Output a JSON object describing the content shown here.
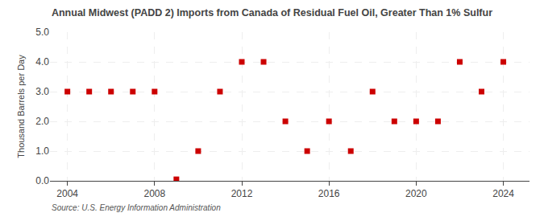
{
  "chart_data": {
    "type": "scatter",
    "title": "Annual Midwest (PADD 2) Imports from Canada of Residual Fuel Oil, Greater Than 1% Sulfur",
    "ylabel": "Thousand Barrels per Day",
    "annotations": [
      "Source: U.S. Energy Information Administration"
    ],
    "x": [
      2004,
      2005,
      2006,
      2007,
      2008,
      2009,
      2010,
      2011,
      2012,
      2013,
      2014,
      2015,
      2016,
      2017,
      2018,
      2019,
      2020,
      2021,
      2022,
      2023,
      2024
    ],
    "values": [
      3.0,
      3.0,
      3.0,
      3.0,
      3.0,
      0.05,
      1.0,
      3.0,
      4.0,
      4.0,
      2.0,
      1.0,
      2.0,
      1.0,
      3.0,
      2.0,
      2.0,
      2.0,
      4.0,
      3.0,
      4.0
    ],
    "color": "#cc0000",
    "marker": "square",
    "xlim": [
      2003.2,
      2025.2
    ],
    "ylim": [
      0.0,
      5.0
    ],
    "xticks": [
      2004,
      2008,
      2012,
      2016,
      2020,
      2024
    ],
    "yticks": [
      {
        "value": 0,
        "label": "0.0"
      },
      {
        "value": 1,
        "label": "1.0"
      },
      {
        "value": 2,
        "label": "2.0"
      },
      {
        "value": 3,
        "label": "3.0"
      },
      {
        "value": 4,
        "label": "4.0"
      },
      {
        "value": 5,
        "label": "5.0"
      }
    ],
    "grid": true
  }
}
